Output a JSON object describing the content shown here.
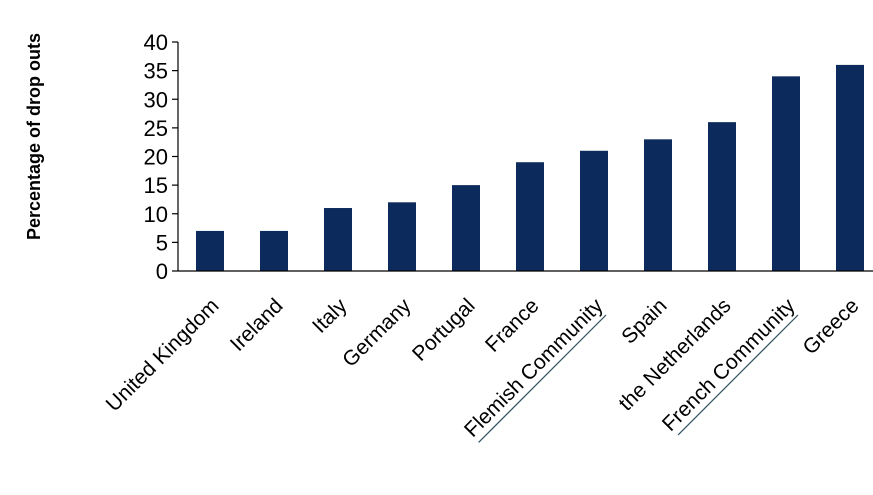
{
  "chart_data": {
    "type": "bar",
    "title": "",
    "xlabel": "",
    "ylabel": "Percentage of drop outs",
    "ylim": [
      0,
      40
    ],
    "yticks": [
      0,
      5,
      10,
      15,
      20,
      25,
      30,
      35,
      40
    ],
    "grid": false,
    "legend": "none",
    "bar_color": "#0d2a5c",
    "categories": [
      "United Kingdom",
      "Ireland",
      "Italy",
      "Germany",
      "Portugal",
      "France",
      "Flemish Community",
      "Spain",
      "the Netherlands",
      "French Community",
      "Greece"
    ],
    "values": [
      7,
      7,
      11,
      12,
      15,
      19,
      21,
      23,
      26,
      34,
      36
    ],
    "underlined_categories": [
      "Flemish Community",
      "French Community"
    ]
  }
}
